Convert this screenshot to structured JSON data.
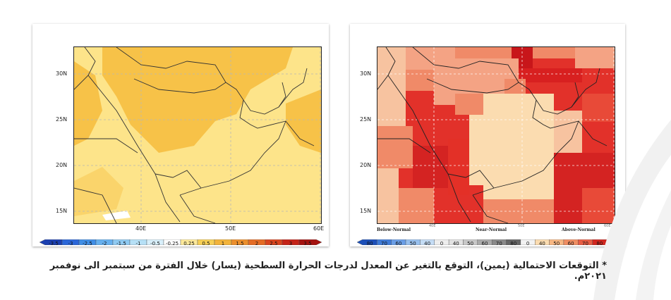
{
  "left_map": {
    "lat_labels": [
      "30N",
      "25N",
      "20N",
      "15N"
    ],
    "lon_labels": [
      "40E",
      "50E",
      "60E"
    ],
    "colorbar_labels": [
      "-3.5",
      "-3",
      "-2.5",
      "-2",
      "-1.5",
      "-1",
      "-0.5",
      "-0.25",
      "0.25",
      "0.5",
      "1",
      "1.5",
      "2",
      "2.5",
      "3",
      "3.5"
    ],
    "colorbar_colors": [
      "#1a3fb0",
      "#2a66d8",
      "#3f8ee6",
      "#66b0ef",
      "#8fcaf2",
      "#b6e0f6",
      "#d8effa",
      "#ffffff",
      "#fde99a",
      "#f7cf55",
      "#f2b33a",
      "#ec8f2c",
      "#e46b24",
      "#d8441e",
      "#c42318",
      "#a4120f"
    ]
  },
  "right_map": {
    "lat_labels": [
      "30N",
      "25N",
      "20N",
      "15N"
    ],
    "lon_labels": [
      "40E",
      "50E",
      "60E"
    ],
    "category_labels": {
      "below": "Below-Normal",
      "near": "Near-Normal",
      "above": "Above-Normal"
    },
    "colorbar_labels": [
      "80",
      "70",
      "60",
      "50",
      "40",
      "0",
      "40",
      "50",
      "60",
      "70",
      "80",
      "0",
      "40",
      "50",
      "60",
      "70",
      "80"
    ],
    "colorbar_unit": "[%]",
    "colorbar_colors": [
      "#1c4fb8",
      "#3f7bd8",
      "#6a9ee6",
      "#98c0ee",
      "#c4dcf5",
      "#eeeeee",
      "#e2e2e2",
      "#c8c8c8",
      "#aaaaaa",
      "#8a8a8a",
      "#666666",
      "#f2f2f2",
      "#fbdcb0",
      "#f7b783",
      "#f08e62",
      "#e85d44",
      "#d1261f"
    ]
  },
  "caption": "* التوقعات الاحتمالية (يمين)، التوقع بالتغير عن المعدل لدرجات الحرارة السطحية (يسار) خلال الفترة من سبتمبر الى نوفمبر ٢٠٢١م."
}
